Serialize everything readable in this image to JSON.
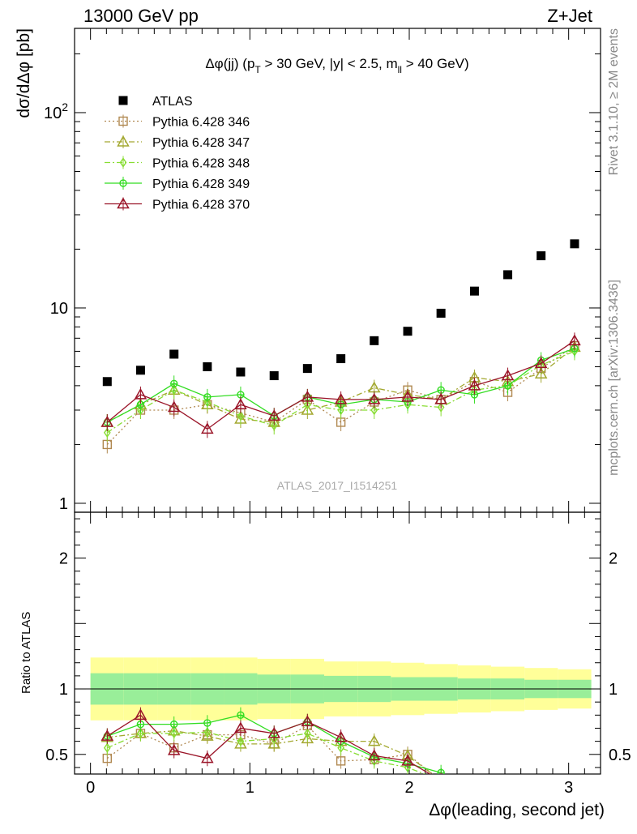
{
  "header": {
    "left_title": "13000 GeV pp",
    "right_title": "Z+Jet"
  },
  "side_labels": {
    "rivet": "Rivet 3.1.10, ≥ 2M events",
    "mcplots": "mcplots.cern.ch [arXiv:1306.3436]"
  },
  "chart_data": [
    {
      "type": "scatter",
      "title": "Δφ(jj) (p_T > 30 GeV, |y| < 2.5, m_ll > 40 GeV)",
      "title_parts": {
        "a": "Δφ(jj) (p",
        "a_sub": "T",
        "b": " > 30 GeV, |y| < 2.5, m",
        "b_sub": "ll",
        "c": " > 40 GeV)"
      },
      "watermark": "ATLAS_2017_I1514251",
      "ylabel": "dσ/dΔφ [pb]",
      "yscale": "log",
      "ylim": [
        0.9,
        270
      ],
      "xlim": [
        -0.1,
        3.2
      ],
      "yticks": [
        {
          "v": 1,
          "label": "1"
        },
        {
          "v": 10,
          "label": "10"
        },
        {
          "v": 100,
          "label": "10",
          "sup": "2"
        }
      ],
      "legend_position": "top-left",
      "x": [
        0.105,
        0.314,
        0.524,
        0.733,
        0.942,
        1.152,
        1.361,
        1.571,
        1.78,
        1.99,
        2.199,
        2.409,
        2.618,
        2.827,
        3.037
      ],
      "series": [
        {
          "name": "ATLAS",
          "color": "#000000",
          "marker": "filled-square",
          "line": "none",
          "values": [
            4.2,
            4.8,
            5.8,
            5.0,
            4.7,
            4.5,
            4.9,
            5.5,
            6.8,
            7.6,
            9.4,
            12.2,
            14.8,
            18.5,
            21.3
          ]
        },
        {
          "name": "Pythia 6.428 346",
          "color": "#b08850",
          "marker": "open-square",
          "line": "dotted",
          "values": [
            2.0,
            3.0,
            3.0,
            3.2,
            2.9,
            2.6,
            3.4,
            2.6,
            3.3,
            3.8,
            3.4,
            4.2,
            3.7,
            4.9,
            6.4
          ]
        },
        {
          "name": "Pythia 6.428 347",
          "color": "#a3a830",
          "marker": "open-triangle",
          "line": "dashdot",
          "values": [
            2.6,
            3.2,
            3.8,
            3.2,
            2.7,
            2.6,
            3.0,
            3.3,
            3.9,
            3.6,
            3.4,
            4.4,
            4.2,
            4.6,
            6.3
          ]
        },
        {
          "name": "Pythia 6.428 348",
          "color": "#88dd33",
          "marker": "open-diamond",
          "line": "dashdot",
          "values": [
            2.3,
            3.0,
            3.8,
            3.3,
            2.8,
            2.5,
            3.2,
            3.0,
            3.0,
            3.2,
            3.1,
            3.8,
            4.0,
            5.1,
            6.0
          ]
        },
        {
          "name": "Pythia 6.428 349",
          "color": "#33dd22",
          "marker": "open-circle-cross",
          "line": "solid",
          "values": [
            2.6,
            3.2,
            4.1,
            3.5,
            3.6,
            2.8,
            3.5,
            3.2,
            3.4,
            3.3,
            3.8,
            3.6,
            4.0,
            5.4,
            6.2
          ]
        },
        {
          "name": "Pythia 6.428 370",
          "color": "#9a1428",
          "marker": "open-triangle",
          "line": "solid",
          "values": [
            2.6,
            3.6,
            3.1,
            2.4,
            3.2,
            2.8,
            3.5,
            3.4,
            3.4,
            3.5,
            3.4,
            4.0,
            4.5,
            5.2,
            6.8
          ]
        }
      ]
    },
    {
      "type": "scatter",
      "ylabel": "Ratio to ATLAS",
      "xlabel": "Δφ(leading, second jet)",
      "ylim": [
        0.35,
        2.35
      ],
      "xlim": [
        -0.1,
        3.2
      ],
      "yticks": [
        {
          "v": 0.5,
          "label": "0.5"
        },
        {
          "v": 1,
          "label": "1"
        },
        {
          "v": 2,
          "label": "2"
        }
      ],
      "xticks": [
        {
          "v": 0,
          "label": "0"
        },
        {
          "v": 1,
          "label": "1"
        },
        {
          "v": 2,
          "label": "2"
        },
        {
          "v": 3,
          "label": "3"
        }
      ],
      "bands": {
        "edges": [
          0,
          0.209,
          0.419,
          0.628,
          0.838,
          1.047,
          1.257,
          1.466,
          1.676,
          1.885,
          2.094,
          2.304,
          2.513,
          2.723,
          2.932,
          3.142
        ],
        "outer_color": "#ffff99",
        "inner_color": "#99ee99",
        "outer_half": [
          0.24,
          0.24,
          0.24,
          0.24,
          0.24,
          0.23,
          0.23,
          0.21,
          0.21,
          0.2,
          0.19,
          0.18,
          0.17,
          0.16,
          0.15
        ],
        "inner_half": [
          0.12,
          0.12,
          0.12,
          0.12,
          0.12,
          0.11,
          0.11,
          0.1,
          0.1,
          0.09,
          0.09,
          0.08,
          0.08,
          0.07,
          0.07
        ]
      },
      "x": [
        0.105,
        0.314,
        0.524,
        0.733,
        0.942,
        1.152,
        1.361,
        1.571,
        1.78,
        1.99,
        2.199,
        2.409,
        2.618,
        2.827,
        3.037
      ],
      "series": [
        {
          "name": "Pythia 6.428 346",
          "values": [
            0.47,
            0.66,
            0.55,
            0.65,
            0.65,
            0.58,
            0.72,
            0.45,
            0.46,
            0.5,
            0.3,
            null,
            null,
            null,
            null
          ]
        },
        {
          "name": "Pythia 6.428 347",
          "values": [
            0.63,
            0.66,
            0.68,
            0.64,
            0.58,
            0.58,
            0.62,
            0.6,
            0.6,
            0.49,
            0.3,
            null,
            null,
            null,
            null
          ]
        },
        {
          "name": "Pythia 6.428 348",
          "values": [
            0.55,
            0.66,
            0.66,
            0.67,
            0.6,
            0.62,
            0.66,
            0.55,
            0.45,
            0.4,
            0.3,
            null,
            null,
            null,
            null
          ]
        },
        {
          "name": "Pythia 6.428 349",
          "values": [
            0.64,
            0.73,
            0.73,
            0.74,
            0.8,
            0.66,
            0.75,
            0.6,
            0.48,
            0.43,
            0.36,
            null,
            null,
            null,
            null
          ]
        },
        {
          "name": "Pythia 6.428 370",
          "values": [
            0.64,
            0.8,
            0.53,
            0.47,
            0.7,
            0.66,
            0.75,
            0.63,
            0.49,
            0.45,
            0.3,
            null,
            null,
            null,
            null
          ]
        }
      ]
    }
  ]
}
